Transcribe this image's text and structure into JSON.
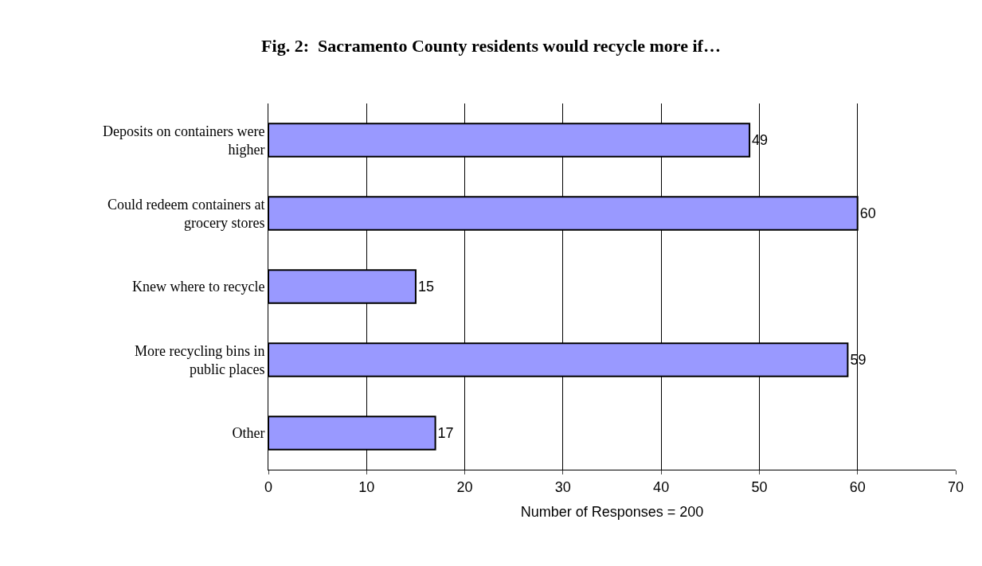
{
  "chart_data": {
    "type": "bar",
    "orientation": "horizontal",
    "title": "Fig. 2:  Sacramento County residents would recycle more if…",
    "categories": [
      "Deposits on containers were higher",
      "Could redeem containers at grocery stores",
      "Knew where to recycle",
      "More recycling bins in public places",
      "Other"
    ],
    "values": [
      49,
      60,
      15,
      59,
      17
    ],
    "color": "#9999ff",
    "xlabel": "Number of Responses = 200",
    "xlim": [
      0,
      70
    ],
    "xticks": [
      0,
      10,
      20,
      30,
      40,
      50,
      60,
      70
    ],
    "grid": "x",
    "data_labels": true
  }
}
